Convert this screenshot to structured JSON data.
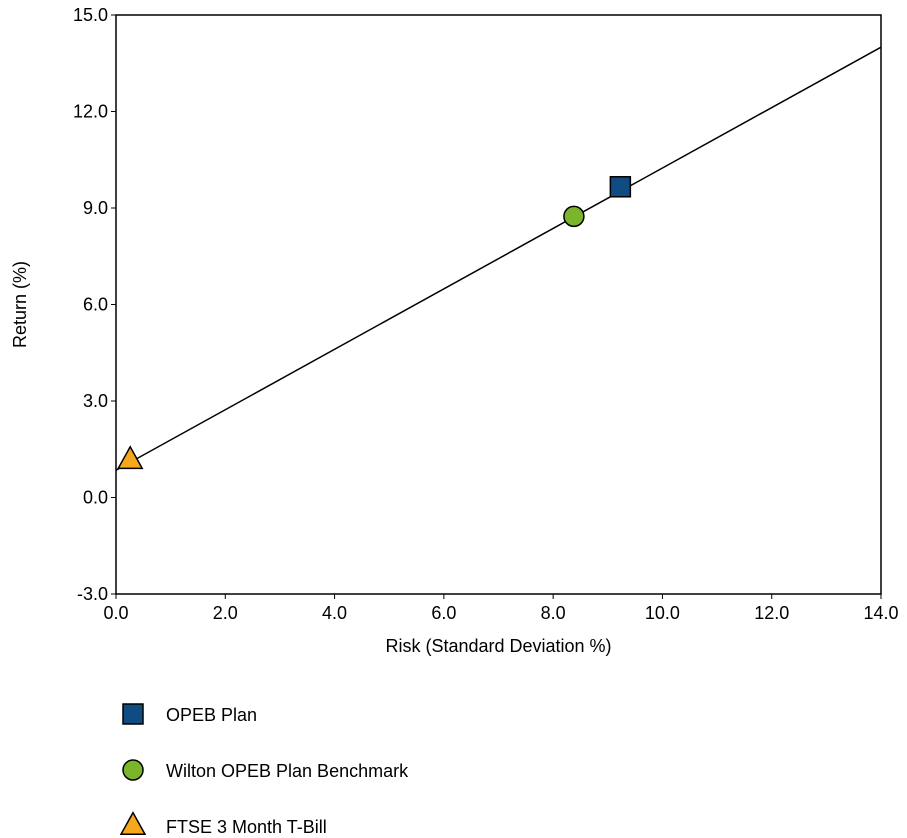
{
  "chart_data": {
    "type": "scatter",
    "xlabel": "Risk (Standard Deviation %)",
    "ylabel": "Return (%)",
    "xlim": [
      0.0,
      14.0
    ],
    "ylim": [
      -3.0,
      15.0
    ],
    "x_ticks": [
      "0.0",
      "2.0",
      "4.0",
      "6.0",
      "8.0",
      "10.0",
      "12.0",
      "14.0"
    ],
    "y_ticks": [
      "-3.0",
      "0.0",
      "3.0",
      "6.0",
      "9.0",
      "12.0",
      "15.0"
    ],
    "grid": false,
    "legend_position": "bottom-left",
    "series": [
      {
        "name": "OPEB Plan",
        "marker": "square",
        "color": "#0f4c81",
        "x": 9.23,
        "y": 9.66
      },
      {
        "name": "Wilton OPEB Plan Benchmark",
        "marker": "circle",
        "color": "#7ab52c",
        "x": 8.38,
        "y": 8.74
      },
      {
        "name": "FTSE 3 Month T-Bill",
        "marker": "triangle",
        "color": "#f5a81c",
        "x": 0.26,
        "y": 1.16
      }
    ],
    "capital_market_line": {
      "x": [
        0.0,
        14.0
      ],
      "y": [
        0.85,
        14.0
      ]
    }
  }
}
